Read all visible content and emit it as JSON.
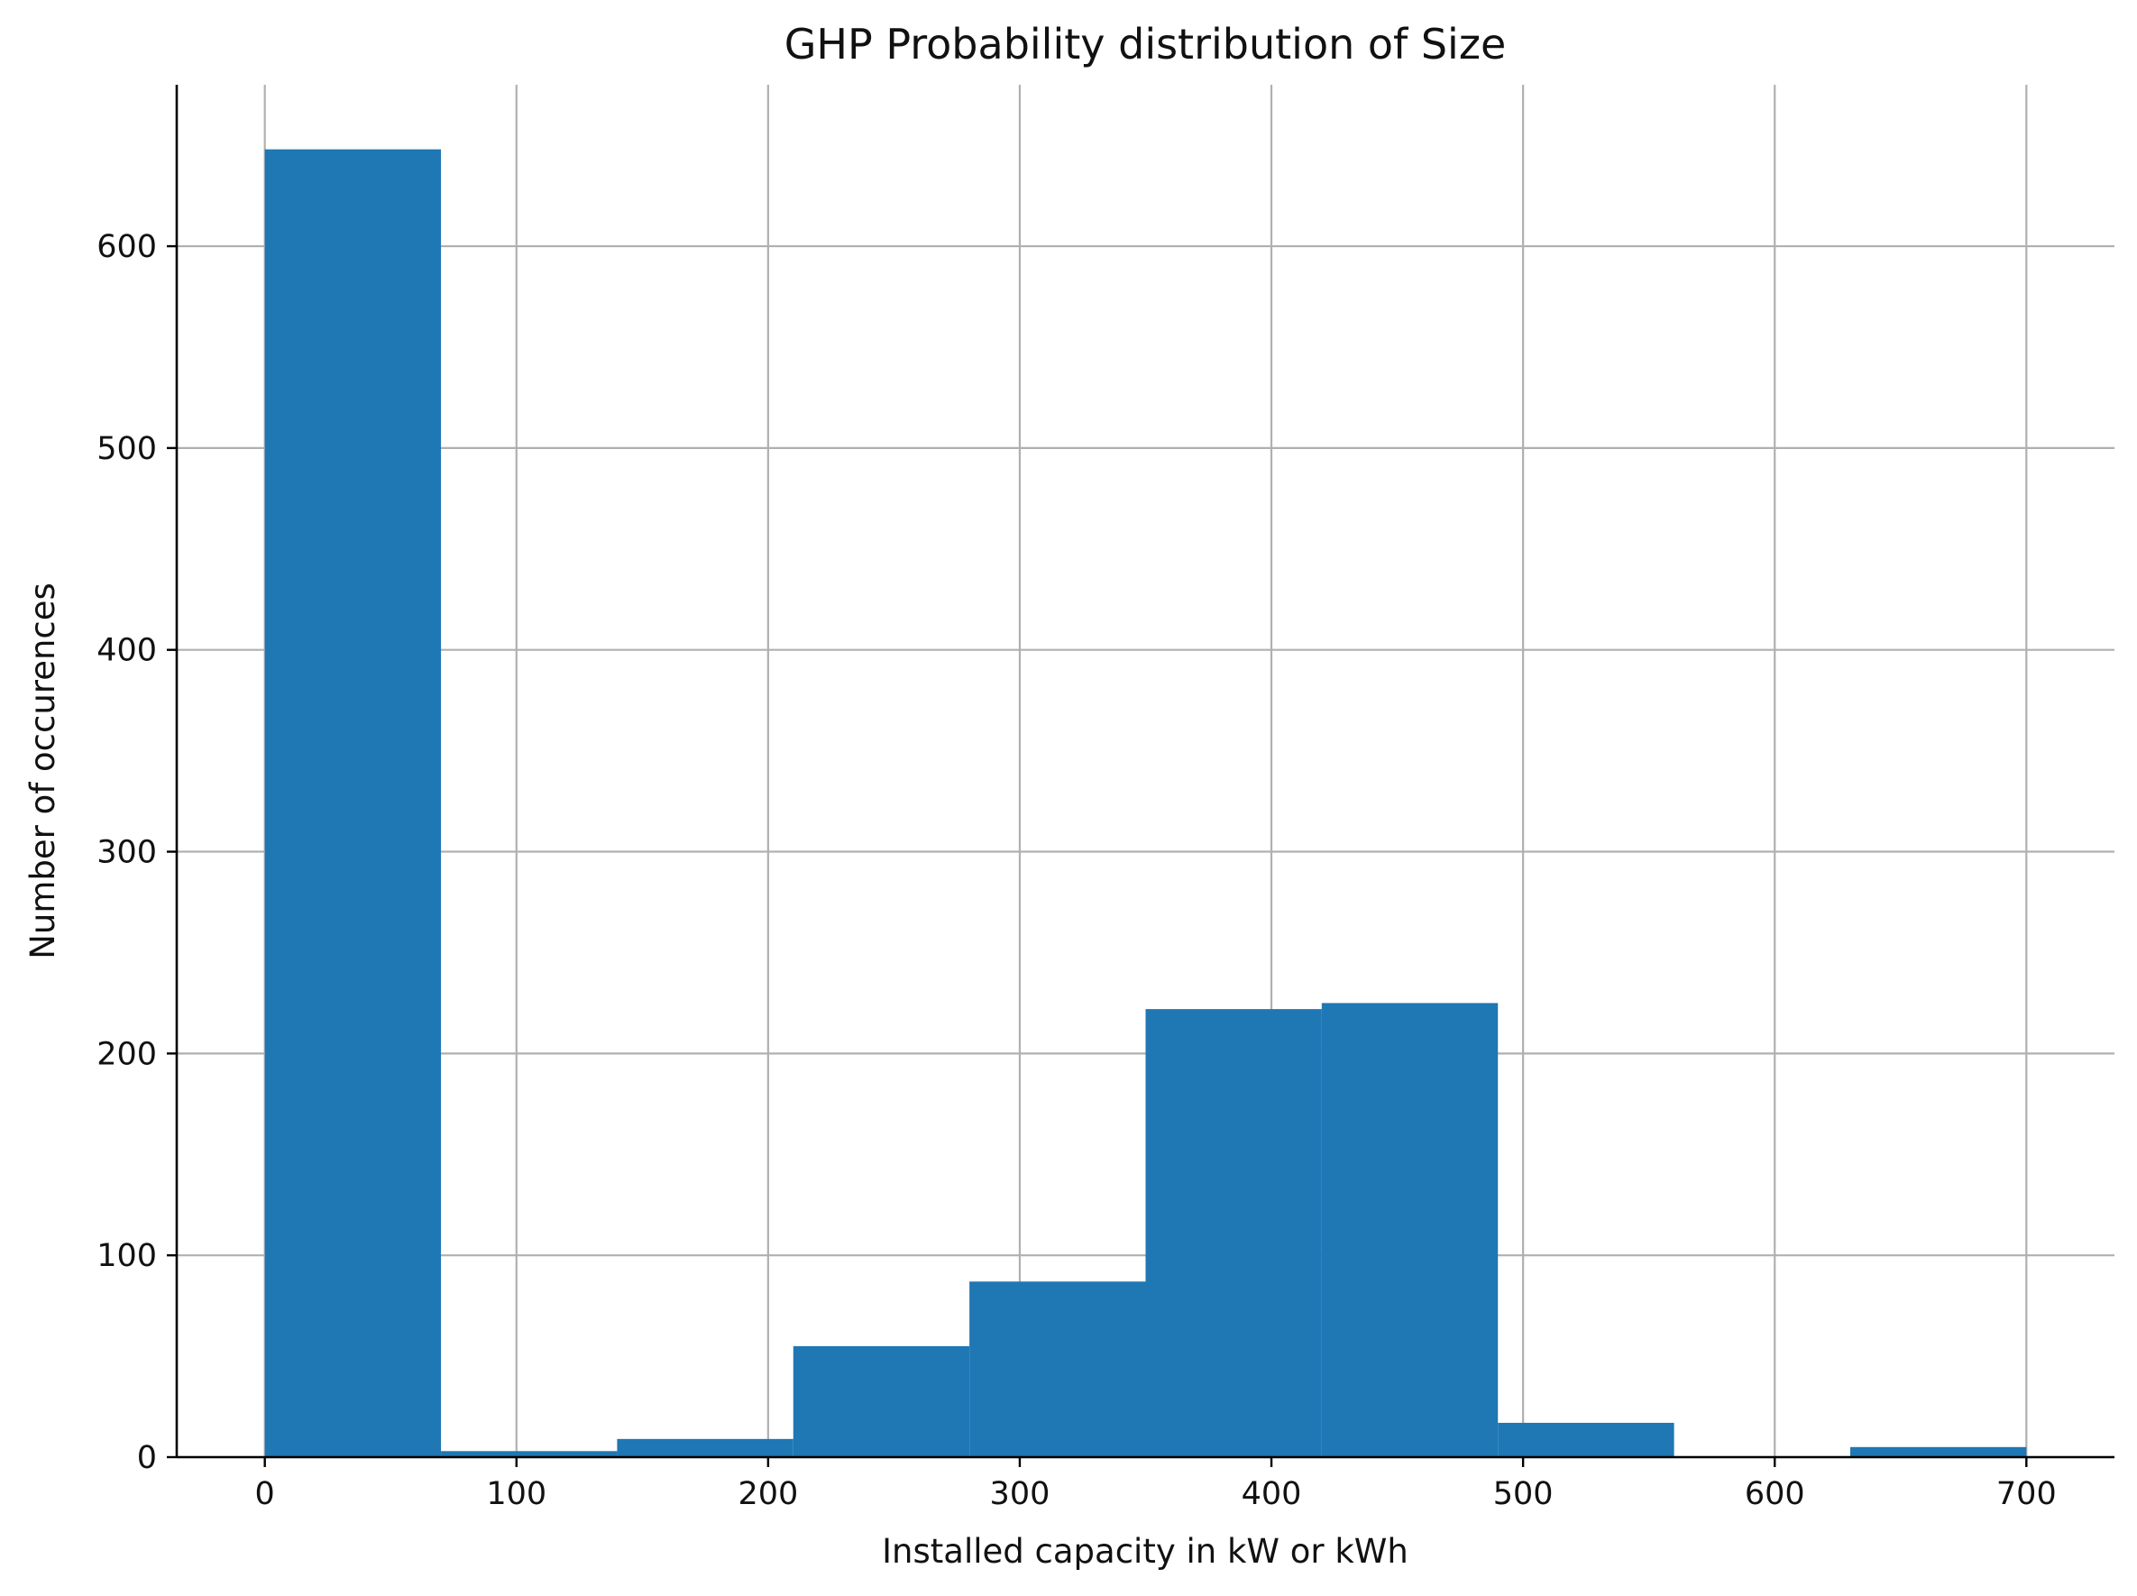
{
  "chart_data": {
    "type": "bar",
    "subtype": "histogram",
    "title": "GHP Probability distribution of Size",
    "xlabel": "Installed capacity in kW or kWh",
    "ylabel": "Number of occurences",
    "bin_edges": [
      0,
      70,
      140,
      210,
      280,
      350,
      420,
      490,
      560,
      630,
      700
    ],
    "values": [
      648,
      3,
      9,
      55,
      87,
      222,
      225,
      17,
      0,
      5
    ],
    "xlim": [
      -35,
      735
    ],
    "ylim": [
      0,
      680
    ],
    "xticks": [
      0,
      100,
      200,
      300,
      400,
      500,
      600,
      700
    ],
    "yticks": [
      0,
      100,
      200,
      300,
      400,
      500,
      600
    ],
    "grid": true,
    "spines": "left-bottom",
    "bar_color": "#1f77b4"
  }
}
